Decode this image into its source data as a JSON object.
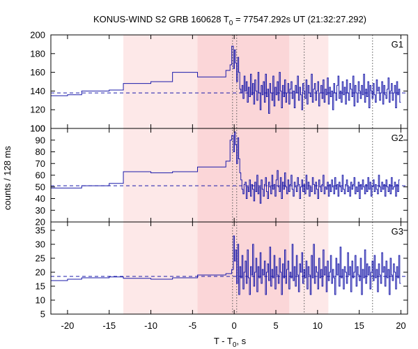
{
  "chart_data": {
    "type": "line",
    "title": "KONUS-WIND S2 GRB 160628 T0 = 77547.292s UT (21:32:27.292)",
    "title_parts": {
      "prefix": "KONUS-WIND S2 GRB 160628 T",
      "subscript": "0",
      "suffix": " = 77547.292s UT (21:32:27.292)"
    },
    "xlabel": "T - T0, s",
    "xlabel_parts": {
      "prefix": "T - T",
      "subscript": "0",
      "suffix": ", s"
    },
    "ylabel": "counts / 128 ms",
    "xlim": [
      -22,
      20.8
    ],
    "xticks": [
      -20,
      -15,
      -10,
      -5,
      0,
      5,
      10,
      15,
      20
    ],
    "colors": {
      "series": "#1a1aaa",
      "band_outer": "#fde8e8",
      "band_inner": "#fbd6d8",
      "frame": "#000000",
      "vline": "#555555"
    },
    "shaded_regions": [
      {
        "name": "outer-interval",
        "x0": -13.3,
        "x1": 11.3
      },
      {
        "name": "inner-interval",
        "x0": -4.4,
        "x1": 6.6
      }
    ],
    "vertical_lines": [
      -0.2,
      0.3,
      8.4,
      16.6
    ],
    "panels": [
      {
        "name": "G1",
        "ylim": [
          100,
          200
        ],
        "yticks": [
          100,
          120,
          140,
          160,
          180,
          200
        ],
        "background_level": 138,
        "coarse_steps": [
          [
            -22,
            -20.0,
            135
          ],
          [
            -20.0,
            -18.3,
            136
          ],
          [
            -18.3,
            -15.0,
            140
          ],
          [
            -15.0,
            -13.3,
            141
          ],
          [
            -13.3,
            -10.0,
            148
          ],
          [
            -10.0,
            -7.4,
            150
          ],
          [
            -7.4,
            -4.4,
            160
          ],
          [
            -4.4,
            -1.0,
            155
          ],
          [
            -1.0,
            -0.5,
            162
          ],
          [
            -0.5,
            -0.3,
            168
          ],
          [
            -0.3,
            -0.1,
            188
          ]
        ],
        "fine_start": -0.1,
        "fine_values": [
          164,
          184,
          170,
          150,
          176,
          160,
          142,
          138,
          146,
          132,
          156,
          140,
          150,
          128,
          144,
          134,
          158,
          136,
          148,
          126,
          152,
          140,
          130,
          160,
          138,
          120,
          146,
          136,
          150,
          128,
          158,
          134,
          142,
          116,
          148,
          138,
          130,
          156,
          124,
          144,
          136,
          150,
          130,
          160,
          140,
          122,
          146,
          134,
          152,
          128,
          138,
          148,
          126,
          142,
          150,
          132,
          140,
          122,
          146,
          138,
          156,
          130,
          144,
          136,
          120,
          148,
          140,
          132,
          152,
          126,
          146,
          138,
          134,
          158,
          128,
          142,
          148,
          130,
          140,
          150,
          124,
          138,
          146,
          132,
          152,
          128,
          142,
          136,
          154,
          126,
          144,
          134,
          140,
          120,
          148,
          138,
          130,
          146,
          156,
          132,
          140,
          128,
          150,
          136,
          144,
          126,
          152,
          138,
          130,
          148,
          142,
          134,
          156,
          124,
          146,
          138,
          128,
          150,
          140,
          132,
          146,
          136,
          158,
          128,
          142,
          134,
          150,
          122,
          146,
          140,
          132,
          148,
          136,
          128,
          152,
          140,
          144,
          130,
          138,
          150,
          126,
          146,
          136,
          132,
          142,
          154,
          128,
          140,
          148,
          130,
          138,
          146,
          122,
          150,
          136,
          142,
          128
        ]
      },
      {
        "name": "G2",
        "ylim": [
          20,
          100
        ],
        "yticks": [
          20,
          30,
          40,
          50,
          60,
          70,
          80,
          90,
          100
        ],
        "background_level": 51,
        "coarse_steps": [
          [
            -22,
            -18.3,
            49
          ],
          [
            -18.3,
            -15.0,
            51
          ],
          [
            -15.0,
            -13.3,
            53
          ],
          [
            -13.3,
            -10.0,
            63
          ],
          [
            -10.0,
            -7.4,
            62
          ],
          [
            -7.4,
            -4.4,
            63
          ],
          [
            -4.4,
            -1.0,
            67
          ],
          [
            -1.0,
            -0.5,
            72
          ],
          [
            -0.5,
            -0.3,
            90
          ],
          [
            -0.3,
            -0.1,
            94
          ]
        ],
        "fine_start": -0.1,
        "fine_values": [
          80,
          97,
          86,
          70,
          92,
          74,
          62,
          56,
          48,
          44,
          52,
          54,
          40,
          50,
          46,
          56,
          42,
          52,
          48,
          38,
          54,
          46,
          60,
          44,
          50,
          36,
          56,
          48,
          42,
          52,
          58,
          46,
          40,
          54,
          50,
          44,
          60,
          48,
          52,
          42,
          56,
          64,
          50,
          46,
          58,
          40,
          54,
          48,
          62,
          50,
          44,
          56,
          46,
          52,
          60,
          48,
          42,
          54,
          50,
          46,
          58,
          52,
          40,
          50,
          56,
          46,
          52,
          44,
          60,
          48,
          54,
          42,
          50,
          46,
          58,
          52,
          44,
          54,
          48,
          40,
          56,
          50,
          46,
          52,
          60,
          44,
          50,
          48,
          54,
          42,
          52,
          46,
          56,
          50,
          44,
          58,
          48,
          52,
          42,
          54,
          50,
          46,
          60,
          48,
          44,
          52,
          56,
          46,
          50,
          42,
          54,
          48,
          52,
          58,
          44,
          50,
          46,
          54,
          40,
          52,
          48,
          56,
          50,
          44,
          52,
          46,
          58,
          48,
          54,
          42,
          50,
          56,
          46,
          52,
          48,
          44,
          60,
          50,
          46,
          54,
          48,
          52,
          42,
          56,
          50,
          46,
          52,
          44,
          58,
          48,
          50,
          54,
          42,
          52,
          46,
          56
        ]
      },
      {
        "name": "G3",
        "ylim": [
          5,
          38
        ],
        "yticks": [
          5,
          10,
          15,
          20,
          25,
          30,
          35
        ],
        "background_level": 18.5,
        "coarse_steps": [
          [
            -22,
            -20.0,
            17
          ],
          [
            -20.0,
            -18.3,
            17.5
          ],
          [
            -18.3,
            -15.0,
            18
          ],
          [
            -15.0,
            -13.3,
            18.3
          ],
          [
            -13.3,
            -10.0,
            17.8
          ],
          [
            -10.0,
            -7.4,
            17.5
          ],
          [
            -7.4,
            -4.4,
            18
          ],
          [
            -4.4,
            -1.0,
            19
          ],
          [
            -1.0,
            -0.3,
            19.5
          ],
          [
            -0.3,
            -0.1,
            21
          ]
        ],
        "fine_start": -0.1,
        "fine_values": [
          33,
          24,
          28,
          16,
          30,
          12,
          22,
          18,
          26,
          14,
          20,
          24,
          16,
          28,
          18,
          12,
          22,
          19,
          30,
          15,
          20,
          25,
          13,
          22,
          18,
          27,
          16,
          21,
          19,
          24,
          12,
          20,
          23,
          17,
          29,
          15,
          21,
          18,
          26,
          14,
          22,
          19,
          16,
          25,
          20,
          12,
          23,
          18,
          28,
          16,
          21,
          24,
          14,
          20,
          18,
          30,
          17,
          22,
          15,
          26,
          19,
          13,
          23,
          20,
          27,
          16,
          21,
          18,
          24,
          14,
          22,
          19,
          12,
          26,
          18,
          30,
          16,
          22,
          20,
          14,
          25,
          18,
          21,
          15,
          28,
          19,
          22,
          13,
          24,
          17,
          20,
          26,
          16,
          21,
          18,
          12,
          25,
          19,
          23,
          15,
          29,
          18,
          21,
          14,
          22,
          20,
          16,
          27,
          19,
          22,
          13,
          24,
          18,
          20,
          26,
          15,
          22,
          19,
          17,
          25,
          12,
          21,
          18,
          28,
          16,
          23,
          19,
          22,
          14,
          20,
          24,
          17,
          26,
          18,
          21,
          13,
          23,
          19,
          16,
          27,
          20,
          22,
          15,
          24,
          18,
          21,
          12,
          25,
          19,
          17,
          23,
          20,
          14,
          22,
          18,
          26,
          16
        ]
      }
    ]
  }
}
